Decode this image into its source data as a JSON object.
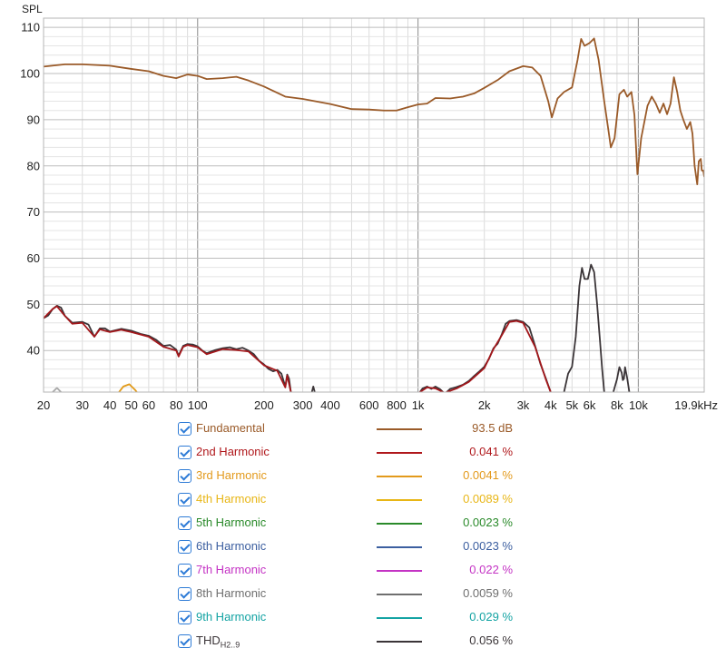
{
  "chart_data": {
    "type": "line",
    "ylabel": "SPL",
    "xunit": "kHz",
    "xscale": "log",
    "xlim": [
      20,
      19900
    ],
    "ylim": [
      31,
      112
    ],
    "grid": true,
    "xticks": [
      {
        "value": 20,
        "label": "20"
      },
      {
        "value": 30,
        "label": "30"
      },
      {
        "value": 40,
        "label": "40"
      },
      {
        "value": 50,
        "label": "50"
      },
      {
        "value": 60,
        "label": "60"
      },
      {
        "value": 80,
        "label": "80"
      },
      {
        "value": 100,
        "label": "100"
      },
      {
        "value": 200,
        "label": "200"
      },
      {
        "value": 300,
        "label": "300"
      },
      {
        "value": 400,
        "label": "400"
      },
      {
        "value": 600,
        "label": "600"
      },
      {
        "value": 800,
        "label": "800"
      },
      {
        "value": 1000,
        "label": "1k"
      },
      {
        "value": 2000,
        "label": "2k"
      },
      {
        "value": 3000,
        "label": "3k"
      },
      {
        "value": 4000,
        "label": "4k"
      },
      {
        "value": 5000,
        "label": "5k"
      },
      {
        "value": 6000,
        "label": "6k"
      },
      {
        "value": 8000,
        "label": "8k"
      },
      {
        "value": 10000,
        "label": "10k"
      },
      {
        "value": 19900,
        "label": "19.9kHz"
      }
    ],
    "yticks": [
      40,
      50,
      60,
      70,
      80,
      90,
      100,
      110
    ],
    "series": [
      {
        "name": "Fundamental",
        "color": "#9a5a28",
        "points": [
          [
            20,
            101.5
          ],
          [
            25,
            102
          ],
          [
            30,
            102
          ],
          [
            40,
            101.7
          ],
          [
            50,
            101
          ],
          [
            60,
            100.5
          ],
          [
            70,
            99.5
          ],
          [
            80,
            99
          ],
          [
            90,
            99.8
          ],
          [
            100,
            99.5
          ],
          [
            110,
            98.8
          ],
          [
            130,
            99
          ],
          [
            150,
            99.3
          ],
          [
            170,
            98.5
          ],
          [
            200,
            97.2
          ],
          [
            250,
            95
          ],
          [
            300,
            94.5
          ],
          [
            400,
            93.4
          ],
          [
            500,
            92.3
          ],
          [
            600,
            92.2
          ],
          [
            700,
            92
          ],
          [
            800,
            92
          ],
          [
            900,
            92.7
          ],
          [
            1000,
            93.3
          ],
          [
            1100,
            93.5
          ],
          [
            1200,
            94.7
          ],
          [
            1400,
            94.6
          ],
          [
            1600,
            95
          ],
          [
            1800,
            95.7
          ],
          [
            2000,
            96.9
          ],
          [
            2300,
            98.6
          ],
          [
            2600,
            100.5
          ],
          [
            3000,
            101.6
          ],
          [
            3300,
            101.3
          ],
          [
            3600,
            99.5
          ],
          [
            3900,
            94
          ],
          [
            4050,
            90.5
          ],
          [
            4300,
            94.6
          ],
          [
            4600,
            96
          ],
          [
            5000,
            97
          ],
          [
            5300,
            103
          ],
          [
            5500,
            107.5
          ],
          [
            5700,
            106
          ],
          [
            6000,
            106.6
          ],
          [
            6300,
            107.6
          ],
          [
            6600,
            103
          ],
          [
            7000,
            94
          ],
          [
            7300,
            88
          ],
          [
            7500,
            84
          ],
          [
            7800,
            86
          ],
          [
            8200,
            95.5
          ],
          [
            8600,
            96.5
          ],
          [
            8900,
            95
          ],
          [
            9300,
            96
          ],
          [
            9600,
            91
          ],
          [
            9900,
            78.2
          ],
          [
            10300,
            86
          ],
          [
            11000,
            93
          ],
          [
            11500,
            95
          ],
          [
            12000,
            93.5
          ],
          [
            12500,
            91.5
          ],
          [
            13000,
            93.5
          ],
          [
            13500,
            91.2
          ],
          [
            14000,
            93.5
          ],
          [
            14500,
            99.2
          ],
          [
            15000,
            96
          ],
          [
            15500,
            92
          ],
          [
            16000,
            90
          ],
          [
            16600,
            88
          ],
          [
            17200,
            89.5
          ],
          [
            17600,
            87
          ],
          [
            18000,
            80
          ],
          [
            18500,
            76
          ],
          [
            18800,
            81
          ],
          [
            19200,
            81.5
          ],
          [
            19400,
            79
          ],
          [
            19700,
            79
          ],
          [
            19900,
            77.7
          ]
        ]
      },
      {
        "name": "THD",
        "color": "#3b3538",
        "segments": [
          [
            [
              20,
              47
            ],
            [
              21,
              47.6
            ],
            [
              22,
              49
            ],
            [
              23,
              49.7
            ],
            [
              24,
              49.3
            ],
            [
              25,
              47.5
            ],
            [
              27,
              46
            ],
            [
              30,
              46.2
            ],
            [
              32,
              45.6
            ],
            [
              34,
              43
            ],
            [
              36,
              44.8
            ],
            [
              38,
              44.8
            ],
            [
              40,
              44.1
            ],
            [
              45,
              44.7
            ],
            [
              50,
              44.3
            ],
            [
              55,
              43.6
            ],
            [
              60,
              43.2
            ],
            [
              65,
              42.3
            ],
            [
              70,
              41
            ],
            [
              75,
              41.2
            ],
            [
              80,
              40.2
            ],
            [
              82,
              38.9
            ],
            [
              86,
              41
            ],
            [
              90,
              41.4
            ],
            [
              95,
              41.3
            ],
            [
              100,
              40.9
            ],
            [
              105,
              40
            ],
            [
              110,
              39.4
            ],
            [
              120,
              40.1
            ],
            [
              130,
              40.5
            ],
            [
              140,
              40.7
            ],
            [
              150,
              40.3
            ],
            [
              160,
              40.6
            ],
            [
              170,
              40
            ],
            [
              180,
              39.2
            ],
            [
              190,
              37.8
            ],
            [
              200,
              37
            ],
            [
              210,
              36
            ],
            [
              220,
              35.5
            ],
            [
              230,
              35.8
            ],
            [
              240,
              35
            ],
            [
              250,
              32.2
            ],
            [
              255,
              34.8
            ],
            [
              260,
              33.9
            ],
            [
              265,
              31
            ]
          ],
          [
            [
              330,
              31
            ],
            [
              335,
              32.2
            ],
            [
              340,
              31
            ]
          ],
          [
            [
              1020,
              31
            ],
            [
              1050,
              31.8
            ],
            [
              1100,
              32.2
            ],
            [
              1150,
              31.7
            ],
            [
              1200,
              32.2
            ],
            [
              1260,
              31.6
            ],
            [
              1300,
              31
            ]
          ],
          [
            [
              1350,
              31
            ],
            [
              1400,
              31.7
            ],
            [
              1500,
              32.1
            ],
            [
              1600,
              32.6
            ],
            [
              1700,
              33.4
            ],
            [
              1800,
              34.5
            ],
            [
              1900,
              35.5
            ],
            [
              2000,
              36.5
            ],
            [
              2100,
              38.2
            ],
            [
              2200,
              40.5
            ],
            [
              2300,
              41.5
            ],
            [
              2400,
              43.5
            ],
            [
              2500,
              45.8
            ],
            [
              2600,
              46.4
            ],
            [
              2800,
              46.6
            ],
            [
              3000,
              46.2
            ],
            [
              3200,
              45
            ],
            [
              3400,
              41
            ],
            [
              3600,
              37
            ],
            [
              3800,
              34
            ],
            [
              4000,
              31
            ]
          ],
          [
            [
              4600,
              31
            ],
            [
              4800,
              35
            ],
            [
              5000,
              36.5
            ],
            [
              5200,
              43
            ],
            [
              5400,
              54
            ],
            [
              5550,
              57.9
            ],
            [
              5700,
              55.5
            ],
            [
              5900,
              55.5
            ],
            [
              6100,
              58.6
            ],
            [
              6300,
              57
            ],
            [
              6500,
              50
            ],
            [
              6700,
              42
            ],
            [
              6850,
              36
            ],
            [
              7000,
              31
            ]
          ],
          [
            [
              7700,
              31
            ],
            [
              8000,
              33.8
            ],
            [
              8200,
              36.4
            ],
            [
              8400,
              35.2
            ],
            [
              8500,
              33.6
            ],
            [
              8600,
              33.9
            ],
            [
              8700,
              36.4
            ],
            [
              8900,
              34
            ],
            [
              9100,
              31
            ]
          ]
        ]
      },
      {
        "name": "2nd Harmonic",
        "color": "#a3171b",
        "segments": [
          [
            [
              20,
              47
            ],
            [
              22,
              49
            ],
            [
              23,
              49.6
            ],
            [
              25,
              47.5
            ],
            [
              27,
              45.8
            ],
            [
              30,
              46
            ],
            [
              34,
              43
            ],
            [
              36,
              44.6
            ],
            [
              40,
              44
            ],
            [
              45,
              44.5
            ],
            [
              50,
              44
            ],
            [
              60,
              43
            ],
            [
              70,
              40.8
            ],
            [
              80,
              40
            ],
            [
              82,
              38.7
            ],
            [
              86,
              40.8
            ],
            [
              90,
              41.2
            ],
            [
              100,
              40.7
            ],
            [
              110,
              39.2
            ],
            [
              130,
              40.3
            ],
            [
              150,
              40.1
            ],
            [
              170,
              39.8
            ],
            [
              200,
              36.8
            ],
            [
              230,
              35.6
            ],
            [
              250,
              32
            ],
            [
              255,
              34.6
            ],
            [
              265,
              31
            ]
          ],
          [
            [
              1020,
              31
            ],
            [
              1100,
              32
            ],
            [
              1200,
              31.8
            ],
            [
              1300,
              31
            ]
          ],
          [
            [
              1350,
              31
            ],
            [
              1500,
              31.8
            ],
            [
              1700,
              33.2
            ],
            [
              2000,
              36.2
            ],
            [
              2200,
              40.3
            ],
            [
              2400,
              43.3
            ],
            [
              2600,
              46.2
            ],
            [
              2800,
              46.4
            ],
            [
              3000,
              46
            ],
            [
              3400,
              40.8
            ],
            [
              3800,
              33.8
            ],
            [
              4000,
              31
            ]
          ]
        ]
      },
      {
        "name": "3rd Harmonic",
        "color": "#e29a18",
        "segments": [
          [
            [
              44,
              31
            ],
            [
              46,
              32.2
            ],
            [
              49,
              32.7
            ],
            [
              52,
              31.5
            ],
            [
              53,
              31
            ]
          ]
        ]
      },
      {
        "name": "8th Harmonic",
        "color": "#a9a9a9",
        "segments": [
          [
            [
              22,
              31
            ],
            [
              23,
              31.9
            ],
            [
              24,
              31
            ]
          ]
        ]
      }
    ]
  },
  "legend": [
    {
      "name": "Fundamental",
      "value": "93.5 dB",
      "color": "#9a5a28",
      "checked": true
    },
    {
      "name": "2nd Harmonic",
      "value": "0.041 %",
      "color": "#b0181c",
      "checked": true
    },
    {
      "name": "3rd Harmonic",
      "value": "0.0041 %",
      "color": "#e39a1c",
      "checked": true
    },
    {
      "name": "4th Harmonic",
      "value": "0.0089 %",
      "color": "#e8b616",
      "checked": true
    },
    {
      "name": "5th Harmonic",
      "value": "0.0023 %",
      "color": "#2a8a2a",
      "checked": true
    },
    {
      "name": "6th Harmonic",
      "value": "0.0023 %",
      "color": "#3c5fa0",
      "checked": true
    },
    {
      "name": "7th Harmonic",
      "value": "0.022 %",
      "color": "#c433c4",
      "checked": true
    },
    {
      "name": "8th Harmonic",
      "value": "0.0059 %",
      "color": "#6f6f6f",
      "checked": true
    },
    {
      "name": "9th Harmonic",
      "value": "0.029 %",
      "color": "#13a3a3",
      "checked": true
    },
    {
      "name": "THD",
      "name_sub": "H2..9",
      "value": "0.056 %",
      "color": "#3b3538",
      "checked": true
    }
  ]
}
